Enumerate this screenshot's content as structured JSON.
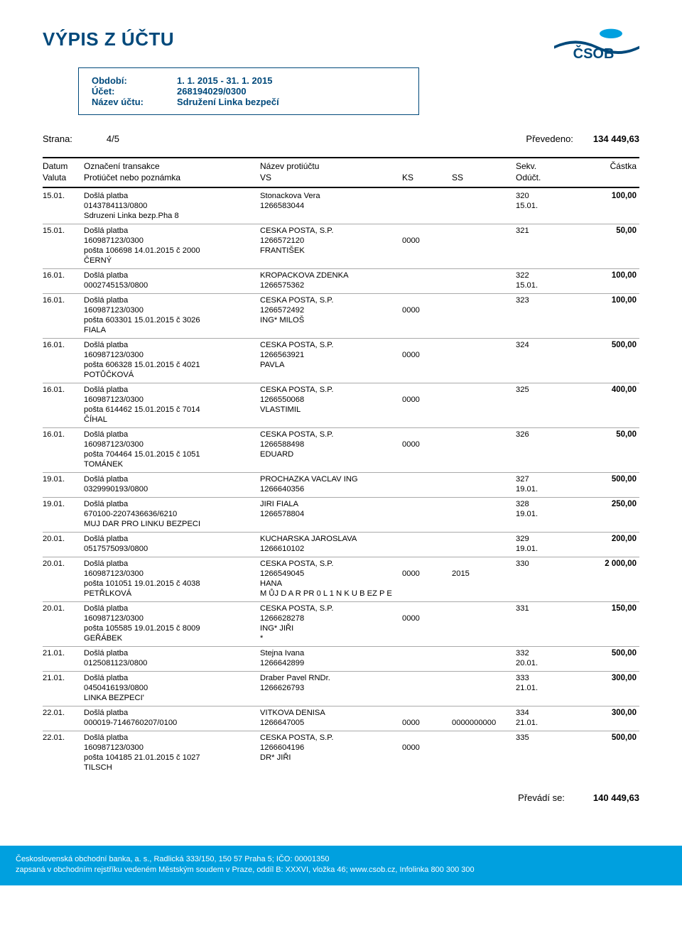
{
  "title": "VÝPIS Z ÚČTU",
  "colors": {
    "brand_dark": "#00497b",
    "brand_light": "#00a0df"
  },
  "period": {
    "labels": {
      "period": "Období:",
      "account": "Účet:",
      "account_name": "Název účtu:"
    },
    "period_value": "1. 1. 2015 - 31. 1. 2015",
    "account_value": "268194029/0300",
    "account_name_value": "Sdružení Linka bezpečí"
  },
  "strana": {
    "page_label": "Strana:",
    "page_value": "4/5",
    "carried_label": "Převedeno:",
    "carried_value": "134 449,63"
  },
  "headers": {
    "date": "Datum",
    "valuta": "Valuta",
    "ozn": "Označení transakce",
    "proti": "Protiúčet nebo poznámka",
    "nazev": "Název protiúčtu",
    "vs": "VS",
    "ks": "KS",
    "ss": "SS",
    "sekv": "Sekv.",
    "oduct": "Odúčt.",
    "castka": "Částka"
  },
  "transactions": [
    {
      "date": "15.01.",
      "type": "Došlá platba",
      "desc": [
        "0143784113/0800",
        "Sdruzeni Linka bezp.Pha 8"
      ],
      "name": [
        "Stonackova Vera",
        "1266583044"
      ],
      "ks": [
        "",
        ""
      ],
      "ss": [
        "",
        ""
      ],
      "sekv": [
        "320",
        "15.01."
      ],
      "amt": "100,00"
    },
    {
      "date": "15.01.",
      "type": "Došlá platba",
      "desc": [
        "160987123/0300",
        "pošta 106698 14.01.2015 č 2000",
        "ČERNÝ"
      ],
      "name": [
        "CESKA POSTA, S.P.",
        "1266572120",
        "FRANTIŠEK"
      ],
      "ks": [
        "",
        "0000",
        ""
      ],
      "ss": [
        "",
        "",
        ""
      ],
      "sekv": [
        "321",
        "",
        ""
      ],
      "amt": "50,00"
    },
    {
      "date": "16.01.",
      "type": "Došlá platba",
      "desc": [
        "0002745153/0800"
      ],
      "name": [
        "KROPACKOVA ZDENKA",
        "1266575362"
      ],
      "ks": [
        "",
        ""
      ],
      "ss": [
        "",
        ""
      ],
      "sekv": [
        "322",
        "15.01."
      ],
      "amt": "100,00"
    },
    {
      "date": "16.01.",
      "type": "Došlá platba",
      "desc": [
        "160987123/0300",
        "pošta 603301 15.01.2015 č 3026",
        "FIALA"
      ],
      "name": [
        "CESKA POSTA, S.P.",
        "1266572492",
        "ING* MILOŠ"
      ],
      "ks": [
        "",
        "0000",
        ""
      ],
      "ss": [
        "",
        "",
        ""
      ],
      "sekv": [
        "323",
        "",
        ""
      ],
      "amt": "100,00"
    },
    {
      "date": "16.01.",
      "type": "Došlá platba",
      "desc": [
        "160987123/0300",
        "pošta 606328 15.01.2015 č 4021",
        "POTŮČKOVÁ"
      ],
      "name": [
        "CESKA POSTA, S.P.",
        "1266563921",
        "PAVLA"
      ],
      "ks": [
        "",
        "0000",
        ""
      ],
      "ss": [
        "",
        "",
        ""
      ],
      "sekv": [
        "324",
        "",
        ""
      ],
      "amt": "500,00"
    },
    {
      "date": "16.01.",
      "type": "Došlá platba",
      "desc": [
        "160987123/0300",
        "pošta 614462 15.01.2015 č 7014",
        "ČÍHAL"
      ],
      "name": [
        "CESKA POSTA, S.P.",
        "1266550068",
        "VLASTIMIL"
      ],
      "ks": [
        "",
        "0000",
        ""
      ],
      "ss": [
        "",
        "",
        ""
      ],
      "sekv": [
        "325",
        "",
        ""
      ],
      "amt": "400,00"
    },
    {
      "date": "16.01.",
      "type": "Došlá platba",
      "desc": [
        "160987123/0300",
        "pošta 704464 15.01.2015 č 1051",
        "TOMÁNEK"
      ],
      "name": [
        "CESKA POSTA, S.P.",
        "1266588498",
        "EDUARD"
      ],
      "ks": [
        "",
        "0000",
        ""
      ],
      "ss": [
        "",
        "",
        ""
      ],
      "sekv": [
        "326",
        "",
        ""
      ],
      "amt": "50,00"
    },
    {
      "date": "19.01.",
      "type": "Došlá platba",
      "desc": [
        "0329990193/0800"
      ],
      "name": [
        "PROCHAZKA VACLAV ING",
        "1266640356"
      ],
      "ks": [
        "",
        ""
      ],
      "ss": [
        "",
        ""
      ],
      "sekv": [
        "327",
        "19.01."
      ],
      "amt": "500,00"
    },
    {
      "date": "19.01.",
      "type": "Došlá platba",
      "desc": [
        "670100-2207436636/6210",
        "MUJ DAR PRO LINKU BEZPECI"
      ],
      "name": [
        "JIRI FIALA",
        "1266578804"
      ],
      "ks": [
        "",
        ""
      ],
      "ss": [
        "",
        ""
      ],
      "sekv": [
        "328",
        "19.01."
      ],
      "amt": "250,00"
    },
    {
      "date": "20.01.",
      "type": "Došlá platba",
      "desc": [
        "0517575093/0800"
      ],
      "name": [
        "KUCHARSKA JAROSLAVA",
        "1266610102"
      ],
      "ks": [
        "",
        ""
      ],
      "ss": [
        "",
        ""
      ],
      "sekv": [
        "329",
        "19.01."
      ],
      "amt": "200,00"
    },
    {
      "date": "20.01.",
      "type": "Došlá platba",
      "desc": [
        "160987123/0300",
        "pošta 101051 19.01.2015 č 4038",
        "PETŘLKOVÁ"
      ],
      "name": [
        "CESKA POSTA, S.P.",
        "1266549045",
        "HANA",
        "M ŮJ D A R PR 0 L 1 N K U B EZ P E"
      ],
      "ks": [
        "",
        "0000",
        "",
        ""
      ],
      "ss": [
        "",
        "2015",
        "",
        ""
      ],
      "sekv": [
        "330",
        "",
        "",
        ""
      ],
      "amt": "2 000,00"
    },
    {
      "date": "20.01.",
      "type": "Došlá platba",
      "desc": [
        "160987123/0300",
        "pošta 105585 19.01.2015 č 8009",
        "GEŘÁBEK"
      ],
      "name": [
        "CESKA POSTA, S.P.",
        "1266628278",
        "ING* JIŘI",
        "*"
      ],
      "ks": [
        "",
        "0000",
        "",
        ""
      ],
      "ss": [
        "",
        "",
        "",
        ""
      ],
      "sekv": [
        "331",
        "",
        "",
        ""
      ],
      "amt": "150,00"
    },
    {
      "date": "21.01.",
      "type": "Došlá platba",
      "desc": [
        "0125081123/0800"
      ],
      "name": [
        "Stejna Ivana",
        "1266642899"
      ],
      "ks": [
        "",
        ""
      ],
      "ss": [
        "",
        ""
      ],
      "sekv": [
        "332",
        "20.01."
      ],
      "amt": "500,00"
    },
    {
      "date": "21.01.",
      "type": "Došlá platba",
      "desc": [
        "0450416193/0800",
        "LINKA BEZPECI'"
      ],
      "name": [
        "Draber Pavel RNDr.",
        "1266626793"
      ],
      "ks": [
        "",
        ""
      ],
      "ss": [
        "",
        ""
      ],
      "sekv": [
        "333",
        "21.01."
      ],
      "amt": "300,00"
    },
    {
      "date": "22.01.",
      "type": "Došlá platba",
      "desc": [
        "000019-7146760207/0100"
      ],
      "name": [
        "VITKOVA DENISA",
        "1266647005"
      ],
      "ks": [
        "",
        "0000"
      ],
      "ss": [
        "",
        "0000000000"
      ],
      "sekv": [
        "334",
        "21.01."
      ],
      "amt": "300,00"
    },
    {
      "date": "22.01.",
      "type": "Došlá platba",
      "desc": [
        "160987123/0300",
        "pošta 104185 21.01.2015 č 1027",
        "TILSCH"
      ],
      "name": [
        "CESKA POSTA, S.P.",
        "1266604196",
        "DR* JIŘI"
      ],
      "ks": [
        "",
        "0000",
        ""
      ],
      "ss": [
        "",
        "",
        ""
      ],
      "sekv": [
        "335",
        "",
        ""
      ],
      "amt": "500,00"
    }
  ],
  "carry": {
    "label": "Převádí se:",
    "value": "140 449,63"
  },
  "footer": {
    "line1": "Československá obchodní banka, a. s., Radlická 333/150, 150 57 Praha 5; IČO: 00001350",
    "line2": "zapsaná v obchodním rejstříku vedeném Městským soudem v Praze, oddíl B: XXXVI, vložka 46; www.csob.cz, Infolinka 800 300 300"
  }
}
